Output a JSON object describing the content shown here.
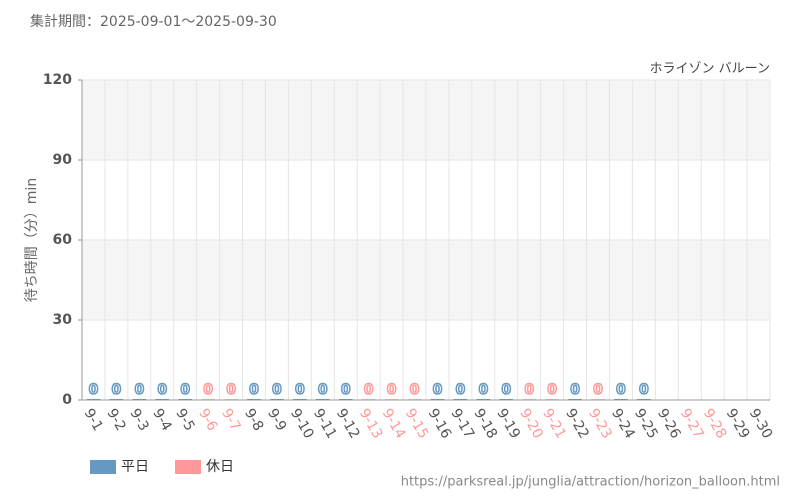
{
  "chart_data": {
    "type": "bar",
    "title": "集計期間：2025-09-01～2025-09-30",
    "subtitle": "ホライゾン バルーン",
    "y_label": "待ち時間（分）min",
    "source": "https://parksreal.jp/junglia/attraction/horizon_balloon.html",
    "categories": [
      "9-1",
      "9-2",
      "9-3",
      "9-4",
      "9-5",
      "9-6",
      "9-7",
      "9-8",
      "9-9",
      "9-10",
      "9-11",
      "9-12",
      "9-13",
      "9-14",
      "9-15",
      "9-16",
      "9-17",
      "9-18",
      "9-19",
      "9-20",
      "9-21",
      "9-22",
      "9-23",
      "9-24",
      "9-25",
      "9-26",
      "9-27",
      "9-28",
      "9-29",
      "9-30"
    ],
    "category_series": [
      0,
      0,
      0,
      0,
      0,
      1,
      1,
      0,
      0,
      0,
      0,
      0,
      1,
      1,
      1,
      0,
      0,
      0,
      0,
      1,
      1,
      0,
      1,
      0,
      0,
      0,
      1,
      1,
      0,
      0
    ],
    "series": [
      {
        "name": "平日",
        "color": "#6699c2",
        "values": [
          0,
          0,
          0,
          0,
          0,
          null,
          null,
          0,
          0,
          0,
          0,
          0,
          null,
          null,
          null,
          0,
          0,
          0,
          0,
          null,
          null,
          0,
          null,
          0,
          0,
          null,
          null,
          null,
          null,
          null
        ]
      },
      {
        "name": "休日",
        "color": "#ff9999",
        "values": [
          null,
          null,
          null,
          null,
          null,
          0,
          0,
          null,
          null,
          null,
          null,
          null,
          0,
          0,
          0,
          null,
          null,
          null,
          null,
          0,
          0,
          null,
          0,
          null,
          null,
          null,
          null,
          null,
          null,
          null
        ]
      }
    ],
    "ylim": [
      0,
      120
    ],
    "yticks": [
      0,
      30,
      60,
      90,
      120
    ],
    "grid": true,
    "legend": "bottom-left"
  }
}
